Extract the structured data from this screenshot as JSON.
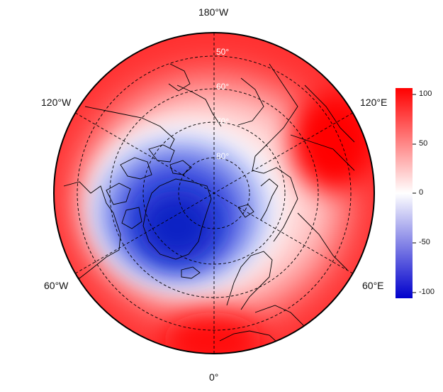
{
  "map": {
    "projection": "north-polar-stereographic",
    "center": "north-pole",
    "bottom_meridian": "0°",
    "longitude_labels": {
      "top": "180°W",
      "bottom": "0°",
      "upper_left": "120°W",
      "upper_right": "120°E",
      "lower_left": "60°W",
      "lower_right": "60°E"
    },
    "latitude_labels": [
      "50°",
      "60°",
      "70°",
      "80°"
    ],
    "graticule_style": "dashed"
  },
  "colorbar": {
    "ticks": [
      "100",
      "50",
      "0",
      "-50",
      "-100"
    ],
    "tick_values": [
      100,
      50,
      0,
      -50,
      -100
    ],
    "range": [
      -100,
      100
    ],
    "colors": {
      "high": "#ff0000",
      "mid": "#ffffff",
      "low": "#0000cc"
    }
  },
  "field": {
    "description_colors": {
      "positive": "#ff0000",
      "negative": "#0a1fc8"
    }
  }
}
